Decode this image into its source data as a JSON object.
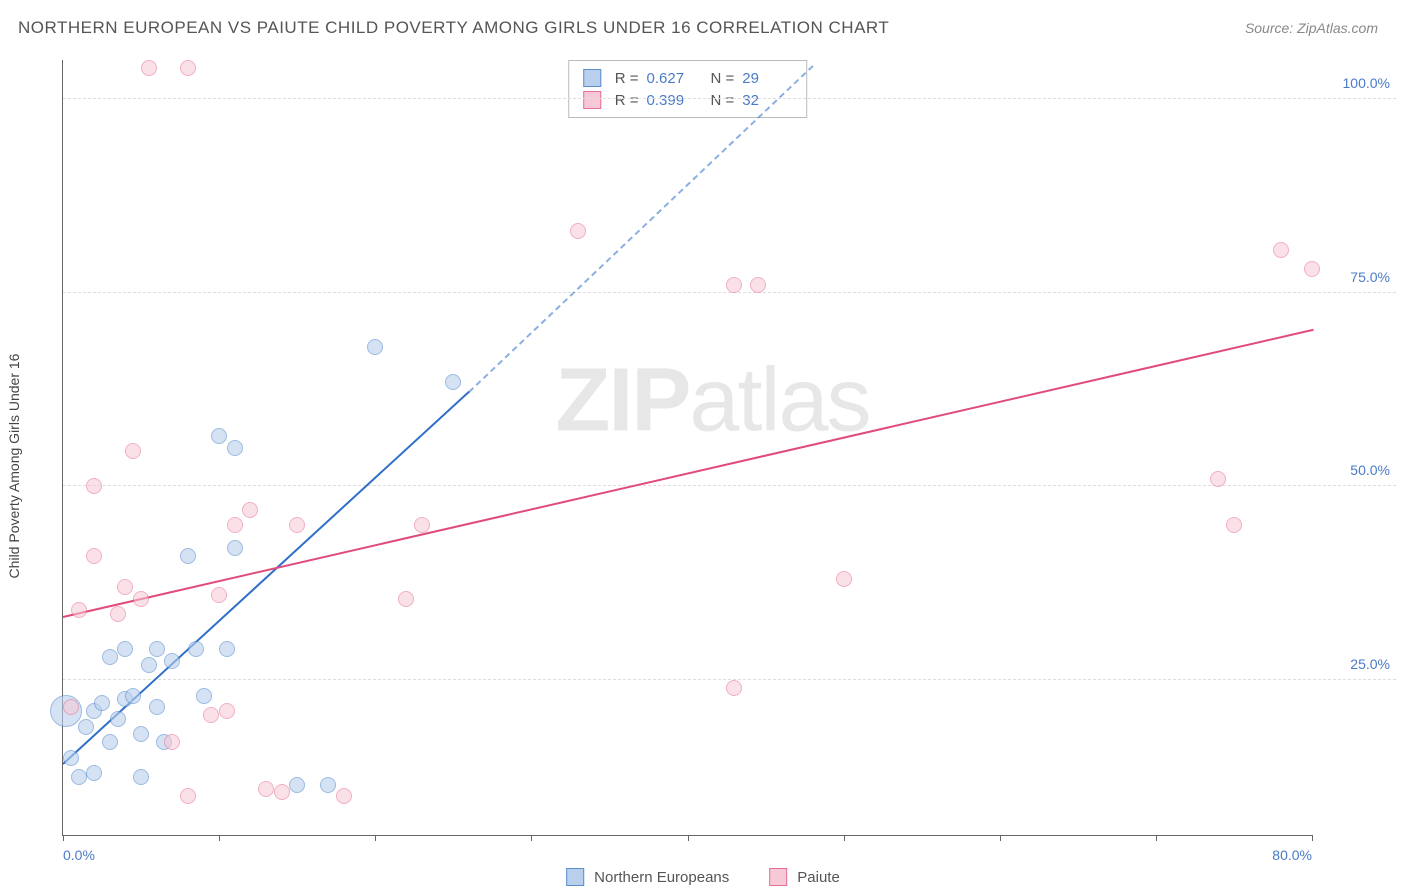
{
  "title": "NORTHERN EUROPEAN VS PAIUTE CHILD POVERTY AMONG GIRLS UNDER 16 CORRELATION CHART",
  "source": "Source: ZipAtlas.com",
  "ylabel": "Child Poverty Among Girls Under 16",
  "watermark_bold": "ZIP",
  "watermark_rest": "atlas",
  "chart": {
    "type": "scatter",
    "background_color": "#ffffff",
    "grid_color": "#dddddd",
    "axis_color": "#666666",
    "xlim": [
      0,
      80
    ],
    "ylim": [
      5,
      105
    ],
    "xticks": [
      0,
      10,
      20,
      30,
      40,
      50,
      60,
      70,
      80
    ],
    "xtick_labels": {
      "0": "0.0%",
      "80": "80.0%"
    },
    "yticks": [
      25,
      50,
      75,
      100
    ],
    "ytick_labels": {
      "25": "25.0%",
      "50": "50.0%",
      "75": "75.0%",
      "100": "100.0%"
    },
    "marker_radius": 8,
    "series": [
      {
        "name": "Northern Europeans",
        "fill": "#b8d0ec",
        "stroke": "#5b8ecf",
        "fill_opacity": 0.6,
        "r": 0.627,
        "n": 29,
        "trend": {
          "x1": 0,
          "y1": 14,
          "x2": 26,
          "y2": 62,
          "solid_color": "#2f6fc9",
          "dash_to_x": 48,
          "dash_to_y": 104
        },
        "points": [
          [
            0.5,
            15
          ],
          [
            1,
            12.5
          ],
          [
            1.5,
            19
          ],
          [
            2,
            13
          ],
          [
            2,
            21
          ],
          [
            2.5,
            22
          ],
          [
            3,
            17
          ],
          [
            3,
            28
          ],
          [
            3.5,
            20
          ],
          [
            4,
            22.5
          ],
          [
            4,
            29
          ],
          [
            4.5,
            23
          ],
          [
            5,
            12.5
          ],
          [
            5,
            18
          ],
          [
            5.5,
            27
          ],
          [
            6,
            21.5
          ],
          [
            6,
            29
          ],
          [
            6.5,
            17
          ],
          [
            7,
            27.5
          ],
          [
            8,
            41
          ],
          [
            8.5,
            29
          ],
          [
            9,
            23
          ],
          [
            10,
            56.5
          ],
          [
            10.5,
            29
          ],
          [
            11,
            42
          ],
          [
            11,
            55
          ],
          [
            15,
            11.5
          ],
          [
            17,
            11.5
          ],
          [
            20,
            68
          ],
          [
            25,
            63.5
          ]
        ],
        "big_point": {
          "x": 0.2,
          "y": 21,
          "r": 16
        }
      },
      {
        "name": "Paiute",
        "fill": "#f7c9d6",
        "stroke": "#e86f93",
        "fill_opacity": 0.55,
        "r": 0.399,
        "n": 32,
        "trend": {
          "x1": 0,
          "y1": 33,
          "x2": 80,
          "y2": 70,
          "solid_color": "#e14b7a"
        },
        "points": [
          [
            0.5,
            21.5
          ],
          [
            1,
            34
          ],
          [
            2,
            41
          ],
          [
            2,
            50
          ],
          [
            3.5,
            33.5
          ],
          [
            4,
            37
          ],
          [
            4.5,
            54.5
          ],
          [
            5,
            35.5
          ],
          [
            5.5,
            104
          ],
          [
            7,
            17
          ],
          [
            8,
            104
          ],
          [
            8,
            10
          ],
          [
            9.5,
            20.5
          ],
          [
            10,
            36
          ],
          [
            10.5,
            21
          ],
          [
            11,
            45
          ],
          [
            12,
            47
          ],
          [
            13,
            11
          ],
          [
            14,
            10.5
          ],
          [
            15,
            45
          ],
          [
            18,
            10
          ],
          [
            22,
            35.5
          ],
          [
            23,
            45
          ],
          [
            33,
            83
          ],
          [
            43,
            76
          ],
          [
            44.5,
            76
          ],
          [
            43,
            24
          ],
          [
            50,
            38
          ],
          [
            74,
            51
          ],
          [
            75,
            45
          ],
          [
            78,
            80.5
          ],
          [
            80,
            78
          ]
        ]
      }
    ]
  },
  "stats_labels": {
    "r": "R =",
    "n": "N ="
  },
  "legend": [
    {
      "label": "Northern Europeans",
      "fill": "#b8d0ec",
      "stroke": "#5b8ecf"
    },
    {
      "label": "Paiute",
      "fill": "#f7c9d6",
      "stroke": "#e86f93"
    }
  ]
}
